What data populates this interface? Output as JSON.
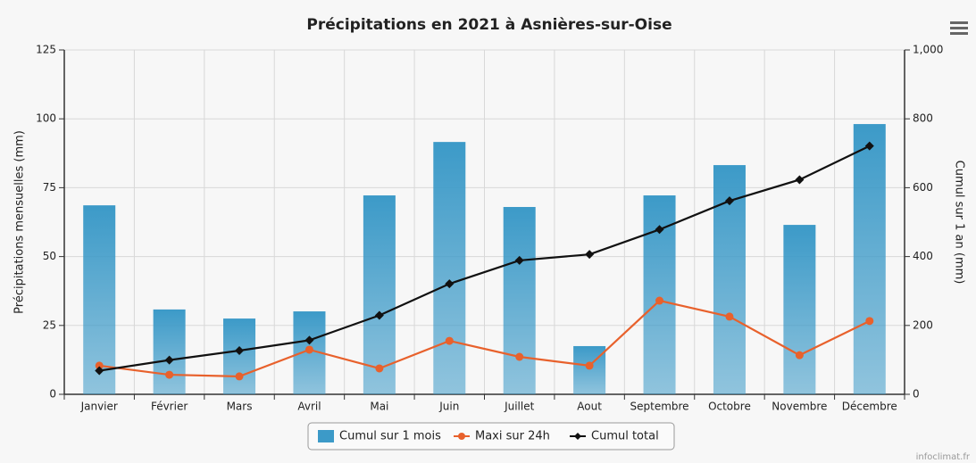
{
  "chart_data": {
    "type": "bar-line",
    "title": "Précipitations en 2021 à Asnières-sur-Oise",
    "ylabel": "Précipitations mensuelles (mm)",
    "y2label": "Cumul sur 1 an (mm)",
    "credit": "infoclimat.fr",
    "categories": [
      "Janvier",
      "Février",
      "Mars",
      "Avril",
      "Mai",
      "Juin",
      "Juillet",
      "Aout",
      "Septembre",
      "Octobre",
      "Novembre",
      "Décembre"
    ],
    "series": [
      {
        "name": "Cumul sur 1 mois",
        "type": "bar",
        "color": "#3c9ac8",
        "values": [
          68.6,
          30.8,
          27.5,
          30.1,
          72.2,
          91.6,
          68,
          17.5,
          72.2,
          83.2,
          61.5,
          98.1
        ]
      },
      {
        "name": "Maxi sur 24h",
        "type": "line",
        "color": "#e8612c",
        "values": [
          10.4,
          7.1,
          6.5,
          16.2,
          9.4,
          19.4,
          13.6,
          10.4,
          34,
          28.2,
          14.2,
          26.6
        ]
      },
      {
        "name": "Cumul total",
        "type": "line",
        "axis": "y2",
        "color": "#111111",
        "values": [
          68.6,
          99.4,
          126.9,
          157,
          229.2,
          320.8,
          388.8,
          406.3,
          478.5,
          561.7,
          623.2,
          721.3
        ]
      }
    ],
    "ylim": [
      0,
      125
    ],
    "yticks": [
      0,
      25,
      50,
      75,
      100,
      125
    ],
    "y2lim": [
      0,
      1000
    ],
    "y2ticks": [
      0,
      200,
      400,
      600,
      800,
      {
        "value": 1000,
        "label": "1,000"
      }
    ],
    "grid": true,
    "legend": "bottom"
  }
}
